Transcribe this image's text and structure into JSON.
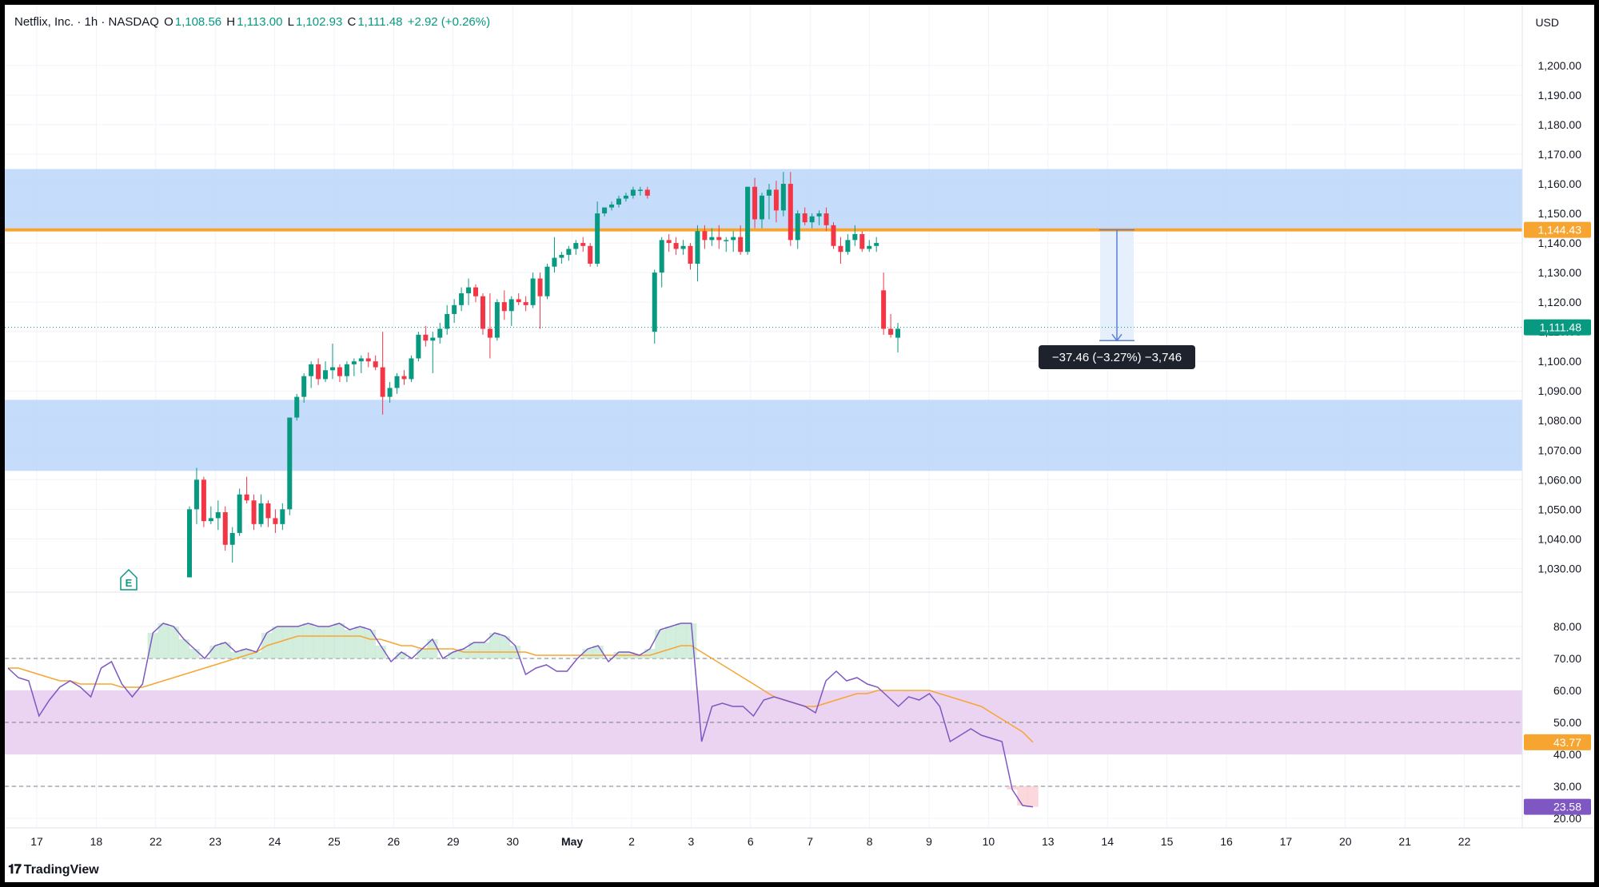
{
  "header": {
    "symbol": "Netflix, Inc. · 1h · NASDAQ",
    "open_label": "O",
    "open": "1,108.56",
    "high_label": "H",
    "high": "1,113.00",
    "low_label": "L",
    "low": "1,102.93",
    "close_label": "C",
    "close": "1,111.48",
    "change": "+2.92 (+0.26%)"
  },
  "currency": "USD",
  "brand": {
    "logo": "𝟏𝟕",
    "name": "TradingView",
    "icon": "tradingview-logo"
  },
  "colors": {
    "up": "#089981",
    "down": "#f23645",
    "zone": "#bbd6fa",
    "resistance": "#f7a531",
    "rsi": "#7e57c2",
    "rsi_ma": "#f7a531",
    "rsi_band": "#e6cdf0",
    "measure": "#5b7fd6"
  },
  "chart_data": {
    "type": "candlestick",
    "symbol": "Netflix, Inc.",
    "interval": "1h",
    "exchange": "NASDAQ",
    "price_axis": {
      "ylim": [
        1022,
        1207
      ],
      "ticks": [
        "1,200.00",
        "1,190.00",
        "1,180.00",
        "1,170.00",
        "1,160.00",
        "1,150.00",
        "1,140.00",
        "1,130.00",
        "1,120.00",
        "1,110.00",
        "1,100.00",
        "1,090.00",
        "1,080.00",
        "1,070.00",
        "1,060.00",
        "1,050.00",
        "1,040.00",
        "1,030.00"
      ]
    },
    "time_axis": {
      "ticks": [
        "17",
        "18",
        "22",
        "23",
        "24",
        "25",
        "26",
        "29",
        "30",
        "May",
        "2",
        "3",
        "6",
        "7",
        "8",
        "9",
        "10",
        "13",
        "14",
        "15",
        "16",
        "17",
        "20",
        "21",
        "22"
      ]
    },
    "zones": [
      {
        "from": 1145,
        "to": 1165
      },
      {
        "from": 1063,
        "to": 1087
      }
    ],
    "resistance_level": {
      "value": 1144.43,
      "label": "1,144.43"
    },
    "last_price": {
      "value": 1111.48,
      "label": "1,111.48"
    },
    "measure": {
      "from": 1144.43,
      "to": 1107.0,
      "label": "−37.46 (−3.27%) −3,746"
    },
    "earnings_marker": "E",
    "candles": [
      {
        "o": 1027,
        "h": 1051,
        "l": 1027,
        "c": 1050
      },
      {
        "o": 1050,
        "h": 1064,
        "l": 1045,
        "c": 1060
      },
      {
        "o": 1060,
        "h": 1061,
        "l": 1044,
        "c": 1046
      },
      {
        "o": 1046,
        "h": 1051,
        "l": 1045,
        "c": 1047
      },
      {
        "o": 1047,
        "h": 1053,
        "l": 1043,
        "c": 1049
      },
      {
        "o": 1049,
        "h": 1051,
        "l": 1036,
        "c": 1038
      },
      {
        "o": 1038,
        "h": 1044,
        "l": 1032,
        "c": 1042
      },
      {
        "o": 1042,
        "h": 1057,
        "l": 1041,
        "c": 1055
      },
      {
        "o": 1055,
        "h": 1061,
        "l": 1052,
        "c": 1053
      },
      {
        "o": 1053,
        "h": 1055,
        "l": 1043,
        "c": 1045
      },
      {
        "o": 1045,
        "h": 1055,
        "l": 1044,
        "c": 1052
      },
      {
        "o": 1052,
        "h": 1053,
        "l": 1044,
        "c": 1047
      },
      {
        "o": 1047,
        "h": 1050,
        "l": 1042,
        "c": 1045
      },
      {
        "o": 1045,
        "h": 1052,
        "l": 1043,
        "c": 1050
      },
      {
        "o": 1050,
        "h": 1081,
        "l": 1048,
        "c": 1081
      },
      {
        "o": 1081,
        "h": 1089,
        "l": 1080,
        "c": 1088
      },
      {
        "o": 1088,
        "h": 1096,
        "l": 1086,
        "c": 1095
      },
      {
        "o": 1095,
        "h": 1100,
        "l": 1091,
        "c": 1099
      },
      {
        "o": 1099,
        "h": 1101,
        "l": 1092,
        "c": 1094
      },
      {
        "o": 1094,
        "h": 1100,
        "l": 1093,
        "c": 1097
      },
      {
        "o": 1097,
        "h": 1106,
        "l": 1094,
        "c": 1098
      },
      {
        "o": 1098,
        "h": 1099,
        "l": 1093,
        "c": 1095
      },
      {
        "o": 1095,
        "h": 1100,
        "l": 1093,
        "c": 1099
      },
      {
        "o": 1099,
        "h": 1101,
        "l": 1095,
        "c": 1100
      },
      {
        "o": 1100,
        "h": 1102,
        "l": 1096,
        "c": 1101
      },
      {
        "o": 1101,
        "h": 1103,
        "l": 1098,
        "c": 1100
      },
      {
        "o": 1100,
        "h": 1102,
        "l": 1097,
        "c": 1098
      },
      {
        "o": 1098,
        "h": 1110,
        "l": 1082,
        "c": 1088
      },
      {
        "o": 1088,
        "h": 1093,
        "l": 1086,
        "c": 1091
      },
      {
        "o": 1091,
        "h": 1096,
        "l": 1089,
        "c": 1095
      },
      {
        "o": 1095,
        "h": 1097,
        "l": 1092,
        "c": 1094
      },
      {
        "o": 1094,
        "h": 1102,
        "l": 1093,
        "c": 1101
      },
      {
        "o": 1101,
        "h": 1110,
        "l": 1100,
        "c": 1109
      },
      {
        "o": 1109,
        "h": 1112,
        "l": 1105,
        "c": 1107
      },
      {
        "o": 1107,
        "h": 1110,
        "l": 1096,
        "c": 1108
      },
      {
        "o": 1108,
        "h": 1113,
        "l": 1106,
        "c": 1111
      },
      {
        "o": 1111,
        "h": 1119,
        "l": 1109,
        "c": 1116
      },
      {
        "o": 1116,
        "h": 1121,
        "l": 1113,
        "c": 1119
      },
      {
        "o": 1119,
        "h": 1125,
        "l": 1117,
        "c": 1123
      },
      {
        "o": 1123,
        "h": 1128,
        "l": 1119,
        "c": 1125
      },
      {
        "o": 1125,
        "h": 1126,
        "l": 1120,
        "c": 1122
      },
      {
        "o": 1122,
        "h": 1123,
        "l": 1109,
        "c": 1111
      },
      {
        "o": 1111,
        "h": 1123,
        "l": 1101,
        "c": 1108
      },
      {
        "o": 1108,
        "h": 1121,
        "l": 1107,
        "c": 1120
      },
      {
        "o": 1120,
        "h": 1124,
        "l": 1114,
        "c": 1117
      },
      {
        "o": 1117,
        "h": 1122,
        "l": 1112,
        "c": 1121
      },
      {
        "o": 1121,
        "h": 1123,
        "l": 1119,
        "c": 1120
      },
      {
        "o": 1120,
        "h": 1122,
        "l": 1117,
        "c": 1119
      },
      {
        "o": 1119,
        "h": 1130,
        "l": 1118,
        "c": 1128
      },
      {
        "o": 1128,
        "h": 1130,
        "l": 1111,
        "c": 1122
      },
      {
        "o": 1122,
        "h": 1133,
        "l": 1121,
        "c": 1132
      },
      {
        "o": 1132,
        "h": 1142,
        "l": 1130,
        "c": 1135
      },
      {
        "o": 1135,
        "h": 1137,
        "l": 1133,
        "c": 1136
      },
      {
        "o": 1136,
        "h": 1139,
        "l": 1134,
        "c": 1138
      },
      {
        "o": 1138,
        "h": 1141,
        "l": 1136,
        "c": 1140
      },
      {
        "o": 1140,
        "h": 1142,
        "l": 1137,
        "c": 1139
      },
      {
        "o": 1139,
        "h": 1140,
        "l": 1132,
        "c": 1133
      },
      {
        "o": 1133,
        "h": 1154,
        "l": 1132,
        "c": 1150
      },
      {
        "o": 1150,
        "h": 1152,
        "l": 1149,
        "c": 1152
      },
      {
        "o": 1152,
        "h": 1154,
        "l": 1151,
        "c": 1153
      },
      {
        "o": 1153,
        "h": 1156,
        "l": 1152,
        "c": 1155
      },
      {
        "o": 1155,
        "h": 1157,
        "l": 1154,
        "c": 1156
      },
      {
        "o": 1156,
        "h": 1159,
        "l": 1155,
        "c": 1158
      },
      {
        "o": 1158,
        "h": 1159,
        "l": 1156,
        "c": 1158
      },
      {
        "o": 1158,
        "h": 1159,
        "l": 1155,
        "c": 1156
      },
      {
        "o": 1110,
        "h": 1131,
        "l": 1106,
        "c": 1130
      },
      {
        "o": 1130,
        "h": 1142,
        "l": 1125,
        "c": 1141
      },
      {
        "o": 1141,
        "h": 1143,
        "l": 1137,
        "c": 1140
      },
      {
        "o": 1140,
        "h": 1142,
        "l": 1136,
        "c": 1138
      },
      {
        "o": 1138,
        "h": 1141,
        "l": 1136,
        "c": 1139
      },
      {
        "o": 1139,
        "h": 1140,
        "l": 1131,
        "c": 1133
      },
      {
        "o": 1133,
        "h": 1146,
        "l": 1127,
        "c": 1144
      },
      {
        "o": 1144,
        "h": 1146,
        "l": 1138,
        "c": 1141
      },
      {
        "o": 1141,
        "h": 1145,
        "l": 1139,
        "c": 1142
      },
      {
        "o": 1142,
        "h": 1146,
        "l": 1138,
        "c": 1141
      },
      {
        "o": 1141,
        "h": 1142,
        "l": 1137,
        "c": 1141
      },
      {
        "o": 1141,
        "h": 1144,
        "l": 1137,
        "c": 1142
      },
      {
        "o": 1142,
        "h": 1146,
        "l": 1136,
        "c": 1137
      },
      {
        "o": 1137,
        "h": 1159,
        "l": 1136,
        "c": 1159
      },
      {
        "o": 1159,
        "h": 1162,
        "l": 1145,
        "c": 1148
      },
      {
        "o": 1148,
        "h": 1157,
        "l": 1145,
        "c": 1156
      },
      {
        "o": 1156,
        "h": 1160,
        "l": 1148,
        "c": 1158
      },
      {
        "o": 1158,
        "h": 1161,
        "l": 1147,
        "c": 1151
      },
      {
        "o": 1151,
        "h": 1164,
        "l": 1149,
        "c": 1160
      },
      {
        "o": 1160,
        "h": 1164,
        "l": 1139,
        "c": 1141
      },
      {
        "o": 1141,
        "h": 1151,
        "l": 1138,
        "c": 1150
      },
      {
        "o": 1150,
        "h": 1152,
        "l": 1146,
        "c": 1147
      },
      {
        "o": 1147,
        "h": 1150,
        "l": 1145,
        "c": 1149
      },
      {
        "o": 1149,
        "h": 1151,
        "l": 1146,
        "c": 1150
      },
      {
        "o": 1150,
        "h": 1152,
        "l": 1144,
        "c": 1146
      },
      {
        "o": 1146,
        "h": 1147,
        "l": 1138,
        "c": 1139
      },
      {
        "o": 1139,
        "h": 1142,
        "l": 1133,
        "c": 1137
      },
      {
        "o": 1137,
        "h": 1143,
        "l": 1136,
        "c": 1141
      },
      {
        "o": 1141,
        "h": 1146,
        "l": 1139,
        "c": 1143
      },
      {
        "o": 1143,
        "h": 1144,
        "l": 1137,
        "c": 1138
      },
      {
        "o": 1138,
        "h": 1141,
        "l": 1137,
        "c": 1139
      },
      {
        "o": 1139,
        "h": 1142,
        "l": 1137,
        "c": 1140
      },
      {
        "o": 1124,
        "h": 1130,
        "l": 1109,
        "c": 1111
      },
      {
        "o": 1111,
        "h": 1116,
        "l": 1108,
        "c": 1109
      },
      {
        "o": 1108,
        "h": 1113,
        "l": 1103,
        "c": 1111
      }
    ],
    "rsi": {
      "ylim": [
        17,
        87
      ],
      "ticks": [
        "80.00",
        "70.00",
        "60.00",
        "50.00",
        "40.00",
        "30.00",
        "20.00"
      ],
      "band": [
        40,
        60
      ],
      "guides": [
        70,
        50,
        30
      ],
      "value": {
        "value": 23.58,
        "label": "23.58"
      },
      "ma_value": {
        "value": 43.77,
        "label": "43.77"
      },
      "values": [
        67,
        64,
        63,
        52,
        57,
        61,
        63,
        61,
        58,
        67,
        69,
        62,
        58,
        62,
        78,
        81,
        80,
        76,
        73,
        70,
        74,
        75,
        72,
        73,
        72,
        78,
        80,
        80,
        80,
        81,
        80,
        80,
        81,
        79,
        80,
        79,
        74,
        69,
        72,
        70,
        73,
        76,
        70,
        72,
        73,
        75,
        75,
        78,
        77,
        74,
        65,
        67,
        68,
        66,
        66,
        70,
        73,
        74,
        69,
        72,
        72,
        71,
        73,
        79,
        80,
        81,
        81,
        44,
        55,
        56,
        55,
        55,
        52,
        57,
        58,
        57,
        56,
        55,
        53,
        63,
        66,
        63,
        64,
        62,
        61,
        58,
        55,
        58,
        57,
        59,
        55,
        44,
        46,
        48,
        46,
        45,
        44,
        29,
        24,
        23.58
      ],
      "ma": [
        67,
        67,
        66,
        65,
        64,
        63,
        63,
        62,
        62,
        62,
        62,
        61,
        61,
        61,
        62,
        63,
        64,
        65,
        66,
        67,
        68,
        69,
        70,
        71,
        72,
        74,
        75,
        76,
        77,
        77,
        77,
        77,
        77,
        77,
        77,
        76,
        76,
        75,
        74,
        74,
        73,
        73,
        73,
        73,
        72,
        72,
        72,
        72,
        72,
        72,
        72,
        71,
        71,
        71,
        71,
        71,
        71,
        71,
        71,
        71,
        71,
        71,
        71,
        72,
        73,
        74,
        74,
        72,
        70,
        68,
        66,
        64,
        62,
        60,
        58,
        57,
        56,
        55,
        55,
        56,
        57,
        58,
        59,
        59,
        60,
        60,
        60,
        60,
        60,
        60,
        59,
        58,
        57,
        56,
        55,
        53,
        51,
        49,
        47,
        43.77
      ]
    }
  }
}
